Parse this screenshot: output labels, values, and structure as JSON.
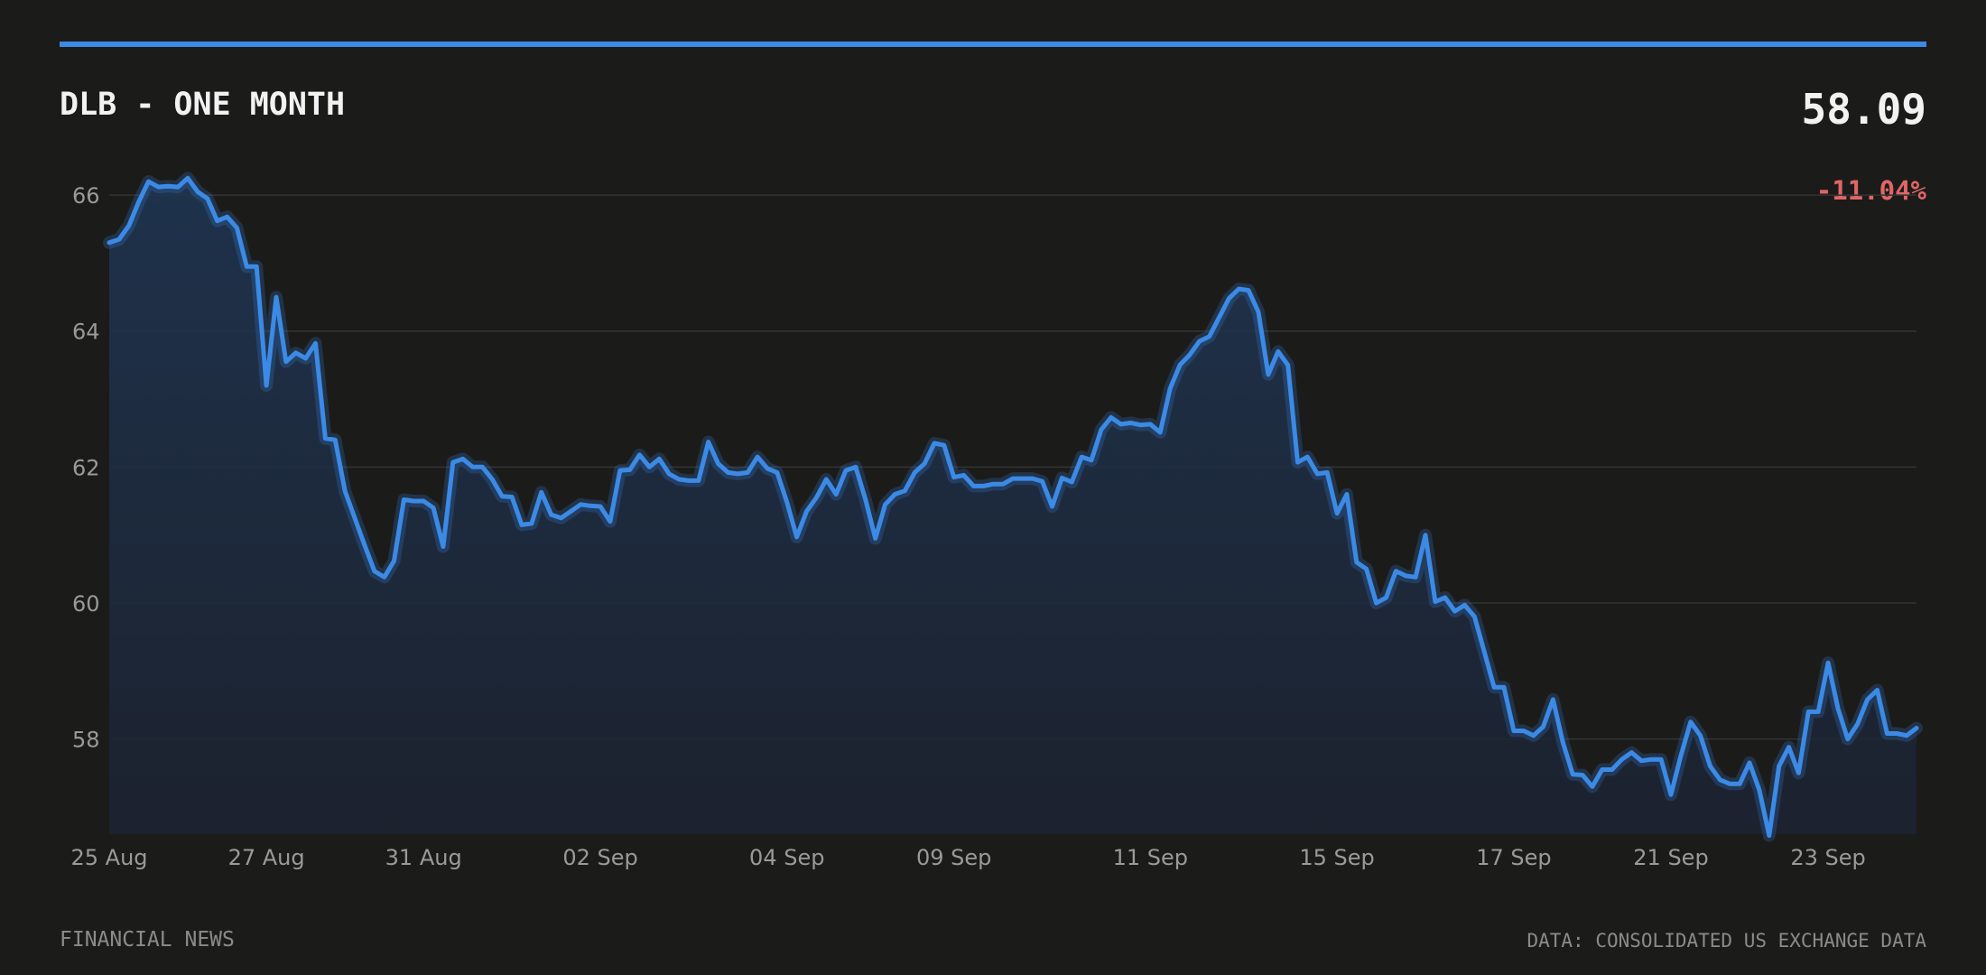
{
  "header": {
    "title": "DLB - ONE MONTH",
    "price": "58.09",
    "change": "-11.04%"
  },
  "footer": {
    "source_left": "FINANCIAL NEWS",
    "source_right": "DATA: CONSOLIDATED US EXCHANGE DATA"
  },
  "colors": {
    "background": "#1b1b1a",
    "accent": "#3b8ae6",
    "negative": "#e06666",
    "grid": "#333435",
    "text": "#f2f2f2",
    "muted": "#9a9a9a"
  },
  "chart_data": {
    "type": "area",
    "ylim": [
      56.6,
      66.4
    ],
    "yticks": [
      58,
      60,
      62,
      64,
      66
    ],
    "grid": "horizontal",
    "xticks": [
      {
        "label": "25 Aug",
        "index": 0
      },
      {
        "label": "27 Aug",
        "index": 16
      },
      {
        "label": "31 Aug",
        "index": 32
      },
      {
        "label": "02 Sep",
        "index": 50
      },
      {
        "label": "04 Sep",
        "index": 69
      },
      {
        "label": "09 Sep",
        "index": 86
      },
      {
        "label": "11 Sep",
        "index": 106
      },
      {
        "label": "15 Sep",
        "index": 125
      },
      {
        "label": "17 Sep",
        "index": 143
      },
      {
        "label": "21 Sep",
        "index": 159
      },
      {
        "label": "23 Sep",
        "index": 175
      }
    ],
    "series": [
      {
        "values": [
          65.3,
          65.35,
          65.55,
          65.9,
          66.2,
          66.12,
          66.13,
          66.12,
          66.25,
          66.05,
          65.95,
          65.62,
          65.68,
          65.52,
          64.95,
          64.95,
          63.2,
          64.5,
          63.55,
          63.68,
          63.6,
          63.82,
          62.42,
          62.4,
          61.65,
          61.25,
          60.85,
          60.47,
          60.38,
          60.62,
          61.52,
          61.5,
          61.5,
          61.4,
          60.83,
          62.07,
          62.12,
          62.0,
          62.0,
          61.82,
          61.57,
          61.56,
          61.15,
          61.17,
          61.63,
          61.3,
          61.25,
          61.35,
          61.45,
          61.43,
          61.42,
          61.2,
          61.95,
          61.96,
          62.18,
          62.0,
          62.12,
          61.9,
          61.82,
          61.8,
          61.8,
          62.37,
          62.05,
          61.92,
          61.9,
          61.92,
          62.15,
          61.98,
          61.92,
          61.48,
          60.97,
          61.35,
          61.55,
          61.82,
          61.6,
          61.95,
          62.0,
          61.52,
          60.95,
          61.45,
          61.6,
          61.65,
          61.92,
          62.05,
          62.35,
          62.32,
          61.85,
          61.88,
          61.72,
          61.72,
          61.75,
          61.75,
          61.83,
          61.83,
          61.83,
          61.79,
          61.42,
          61.84,
          61.78,
          62.15,
          62.1,
          62.55,
          62.73,
          62.63,
          62.65,
          62.62,
          62.63,
          62.51,
          63.15,
          63.5,
          63.65,
          63.85,
          63.92,
          64.2,
          64.48,
          64.62,
          64.6,
          64.28,
          63.36,
          63.7,
          63.5,
          62.07,
          62.15,
          61.9,
          61.92,
          61.32,
          61.6,
          60.6,
          60.5,
          60.0,
          60.08,
          60.47,
          60.4,
          60.38,
          61.0,
          60.02,
          60.08,
          59.88,
          59.97,
          59.8,
          59.28,
          58.76,
          58.76,
          58.12,
          58.12,
          58.05,
          58.18,
          58.58,
          57.95,
          57.48,
          57.47,
          57.3,
          57.55,
          57.55,
          57.7,
          57.8,
          57.68,
          57.7,
          57.7,
          57.18,
          57.75,
          58.25,
          58.05,
          57.6,
          57.4,
          57.34,
          57.34,
          57.65,
          57.25,
          56.58,
          57.6,
          57.88,
          57.5,
          58.4,
          58.4,
          59.12,
          58.45,
          58.0,
          58.22,
          58.58,
          58.72,
          58.08,
          58.08,
          58.05,
          58.16
        ]
      }
    ]
  }
}
